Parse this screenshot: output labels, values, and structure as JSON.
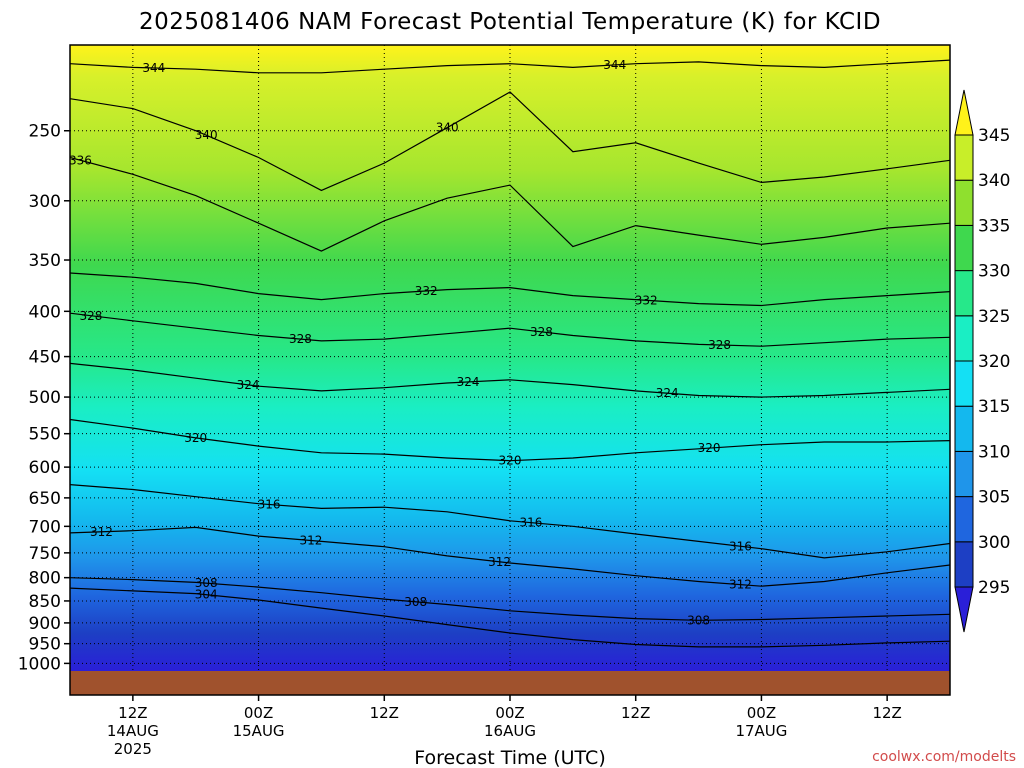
{
  "chart_data": {
    "type": "contour",
    "title": "2025081406 NAM Forecast Potential Temperature (K) for KCID",
    "xlabel": "Forecast Time (UTC)",
    "x_ticks": [
      {
        "hour": 6,
        "line1": "12Z",
        "line2": "14AUG",
        "line3": "2025"
      },
      {
        "hour": 18,
        "line1": "00Z",
        "line2": "15AUG",
        "line3": ""
      },
      {
        "hour": 30,
        "line1": "12Z",
        "line2": "",
        "line3": ""
      },
      {
        "hour": 42,
        "line1": "00Z",
        "line2": "16AUG",
        "line3": ""
      },
      {
        "hour": 54,
        "line1": "12Z",
        "line2": "",
        "line3": ""
      },
      {
        "hour": 66,
        "line1": "00Z",
        "line2": "17AUG",
        "line3": ""
      },
      {
        "hour": 78,
        "line1": "12Z",
        "line2": "",
        "line3": ""
      }
    ],
    "x_range_hours": [
      0,
      84
    ],
    "y_ticks": [
      "250",
      "300",
      "350",
      "400",
      "450",
      "500",
      "550",
      "600",
      "650",
      "700",
      "750",
      "800",
      "850",
      "900",
      "950",
      "1000"
    ],
    "y_range_hpa": [
      200,
      1020
    ],
    "y_scale": "log",
    "colorbar": {
      "levels": [
        295,
        300,
        305,
        310,
        315,
        320,
        325,
        330,
        335,
        340,
        345
      ],
      "colors": [
        "#2a1fd8",
        "#1d3fc4",
        "#1f66df",
        "#1f95ea",
        "#14b8ee",
        "#14e0f4",
        "#1aeec4",
        "#26e88a",
        "#3fd84e",
        "#8fe02e",
        "#c8ee29",
        "#fff21a"
      ]
    },
    "contour_interval": 4,
    "contours": [
      {
        "theta": 344,
        "p": [
          210,
          212,
          213,
          215,
          215,
          213,
          211,
          210,
          212,
          210,
          209,
          211,
          212,
          210,
          208
        ],
        "label_hours": [
          8,
          52
        ]
      },
      {
        "theta": 340,
        "p": [
          230,
          236,
          250,
          268,
          292,
          272,
          248,
          226,
          264,
          258,
          272,
          286,
          282,
          276,
          270
        ],
        "label_hours": [
          13,
          36
        ]
      },
      {
        "theta": 336,
        "p": [
          268,
          280,
          296,
          318,
          342,
          316,
          298,
          288,
          338,
          320,
          328,
          336,
          330,
          322,
          318
        ],
        "label_hours": [
          1
        ]
      },
      {
        "theta": 332,
        "p": [
          362,
          366,
          372,
          382,
          388,
          382,
          378,
          376,
          384,
          388,
          392,
          394,
          388,
          384,
          380
        ],
        "label_hours": [
          34,
          55
        ]
      },
      {
        "theta": 328,
        "p": [
          402,
          410,
          418,
          426,
          432,
          430,
          424,
          418,
          426,
          432,
          436,
          438,
          434,
          430,
          428
        ],
        "label_hours": [
          2,
          22,
          45,
          62
        ]
      },
      {
        "theta": 324,
        "p": [
          458,
          466,
          476,
          486,
          492,
          488,
          482,
          478,
          484,
          492,
          498,
          500,
          498,
          494,
          490
        ],
        "label_hours": [
          17,
          38,
          57
        ]
      },
      {
        "theta": 320,
        "p": [
          530,
          542,
          556,
          568,
          578,
          580,
          586,
          590,
          586,
          578,
          572,
          566,
          562,
          562,
          560
        ],
        "label_hours": [
          12,
          42,
          61
        ]
      },
      {
        "theta": 316,
        "p": [
          628,
          636,
          648,
          660,
          668,
          666,
          674,
          690,
          700,
          714,
          728,
          742,
          760,
          748,
          732
        ],
        "label_hours": [
          19,
          44,
          64
        ]
      },
      {
        "theta": 312,
        "p": [
          712,
          708,
          702,
          718,
          728,
          738,
          756,
          770,
          782,
          796,
          808,
          818,
          808,
          790,
          774
        ],
        "label_hours": [
          3,
          23,
          41,
          64
        ]
      },
      {
        "theta": 308,
        "p": [
          800,
          804,
          810,
          820,
          832,
          846,
          858,
          872,
          882,
          890,
          894,
          892,
          888,
          884,
          880
        ],
        "label_hours": [
          13,
          33,
          60
        ]
      },
      {
        "theta": 304,
        "p": [
          822,
          828,
          834,
          848,
          866,
          884,
          904,
          924,
          940,
          952,
          958,
          958,
          954,
          948,
          944
        ],
        "label_hours": [
          13
        ]
      }
    ],
    "watermark": "coolwx.com/modelts"
  }
}
